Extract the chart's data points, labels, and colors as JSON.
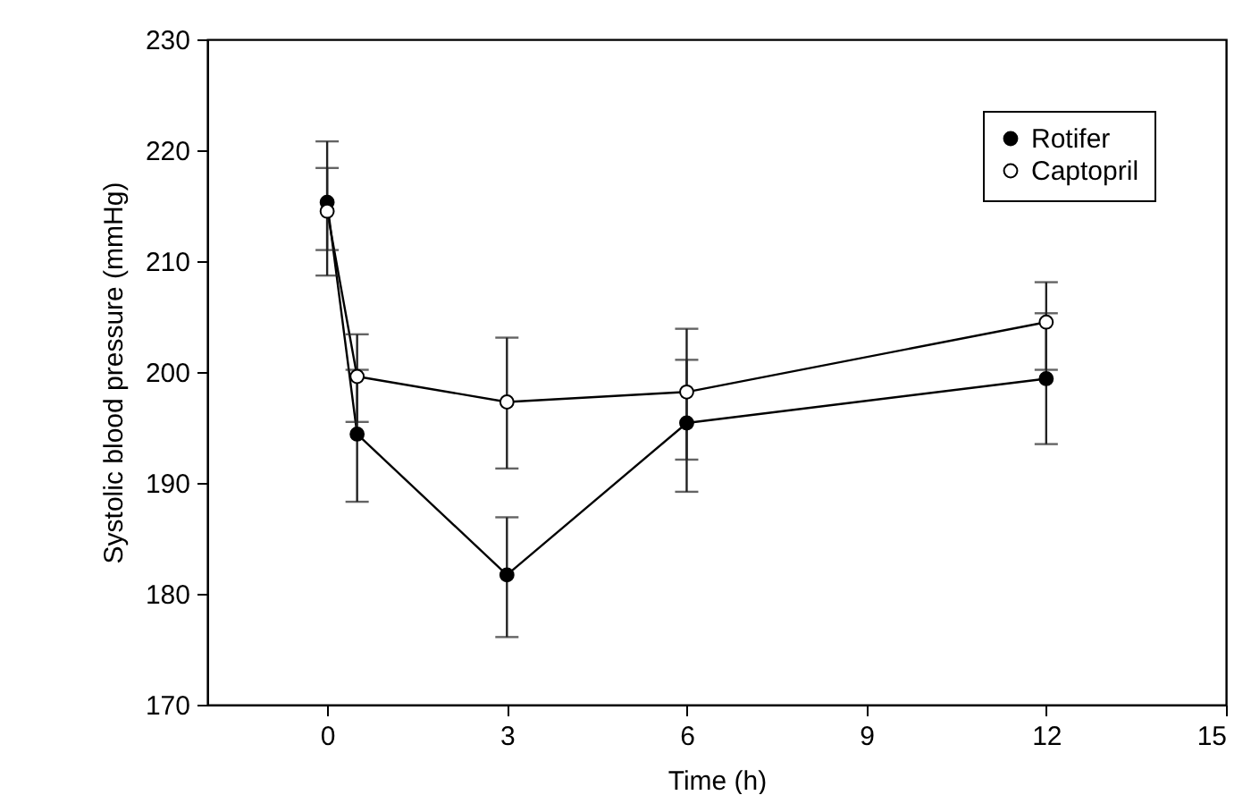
{
  "chart_data": {
    "type": "line",
    "xlabel": "Time (h)",
    "ylabel": "Systolic blood pressure (mmHg)",
    "x": [
      0,
      0.5,
      3,
      6,
      12
    ],
    "series": [
      {
        "name": "Rotifer",
        "color": "#000000",
        "values": [
          215.3,
          194.4,
          181.7,
          195.4,
          199.4
        ],
        "errors": [
          [
            208.7,
            220.8
          ],
          [
            188.3,
            200.2
          ],
          [
            176.1,
            186.9
          ],
          [
            189.2,
            201.1
          ],
          [
            193.5,
            205.3
          ]
        ]
      },
      {
        "name": "Captopril",
        "color": "#ffffff",
        "values": [
          214.5,
          199.6,
          197.3,
          198.2,
          204.5
        ],
        "errors": [
          [
            211.0,
            218.4
          ],
          [
            195.5,
            203.4
          ],
          [
            191.3,
            203.1
          ],
          [
            192.1,
            203.9
          ],
          [
            200.2,
            208.1
          ]
        ]
      }
    ],
    "xlim": [
      -2,
      15
    ],
    "xticks": [
      0,
      3,
      6,
      9,
      12,
      15
    ],
    "ylim": [
      170,
      230
    ],
    "yticks": [
      170,
      180,
      190,
      200,
      210,
      220,
      230
    ],
    "grid": false,
    "legend": "top right",
    "marker": "circle",
    "line_style": "solid"
  }
}
